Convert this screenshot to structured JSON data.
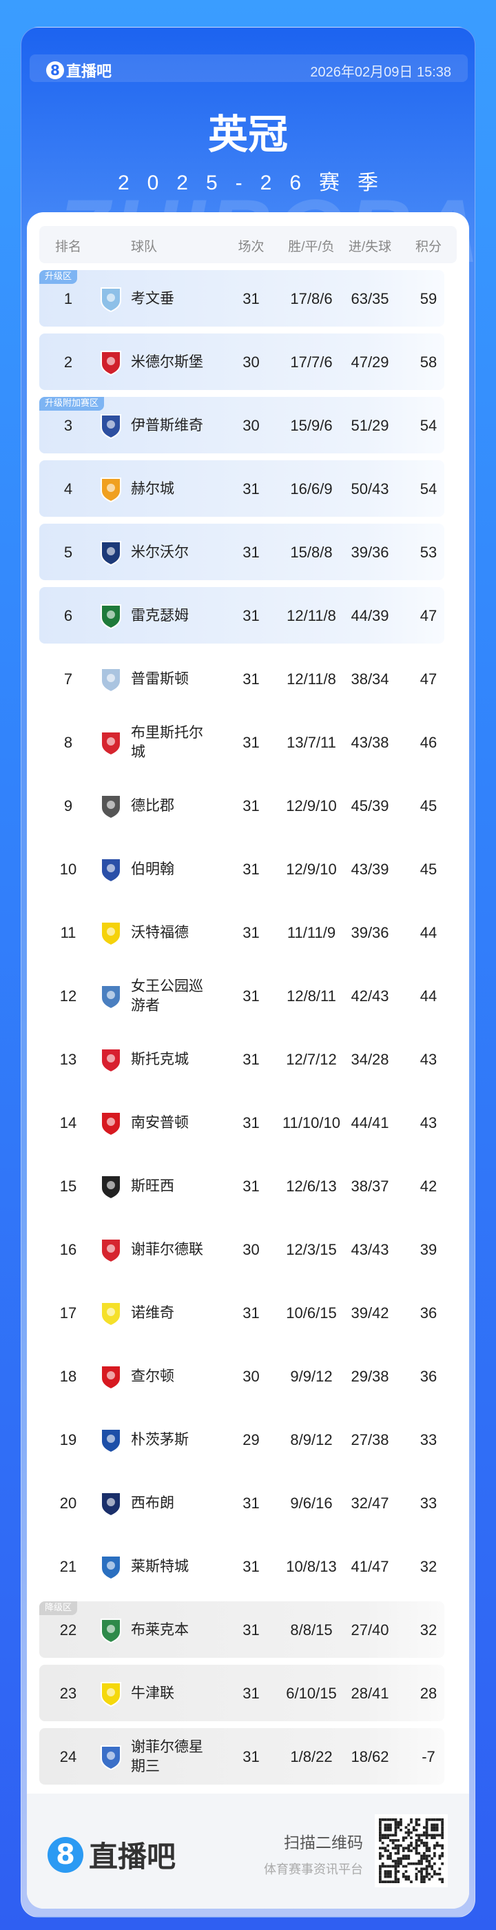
{
  "header": {
    "brand": "直播吧",
    "datetime": "2026年02月09日 15:38"
  },
  "title": "英冠",
  "season": "2025-26赛季",
  "watermark": "ZHIBOBA",
  "table": {
    "columns": [
      "排名",
      "球队",
      "场次",
      "胜/平/负",
      "进/失球",
      "积分"
    ],
    "zones": {
      "promo": "升级区",
      "playoff": "升级附加赛区",
      "releg": "降级区"
    },
    "rows": [
      {
        "rank": "1",
        "team": "考文垂",
        "played": "31",
        "wdl": "17/8/6",
        "goals": "63/35",
        "points": "59",
        "zone": "promo",
        "crest": "#8dc0e8"
      },
      {
        "rank": "2",
        "team": "米德尔斯堡",
        "played": "30",
        "wdl": "17/7/6",
        "goals": "47/29",
        "points": "58",
        "zone": "promo",
        "crest": "#d0202b"
      },
      {
        "rank": "3",
        "team": "伊普斯维奇",
        "played": "30",
        "wdl": "15/9/6",
        "goals": "51/29",
        "points": "54",
        "zone": "playoff",
        "crest": "#2d4fa0"
      },
      {
        "rank": "4",
        "team": "赫尔城",
        "played": "31",
        "wdl": "16/6/9",
        "goals": "50/43",
        "points": "54",
        "zone": "playoff",
        "crest": "#f0a020"
      },
      {
        "rank": "5",
        "team": "米尔沃尔",
        "played": "31",
        "wdl": "15/8/8",
        "goals": "39/36",
        "points": "53",
        "zone": "playoff",
        "crest": "#1d3a78"
      },
      {
        "rank": "6",
        "team": "雷克瑟姆",
        "played": "31",
        "wdl": "12/11/8",
        "goals": "44/39",
        "points": "47",
        "zone": "playoff",
        "crest": "#1e7a3a"
      },
      {
        "rank": "7",
        "team": "普雷斯顿",
        "played": "31",
        "wdl": "12/11/8",
        "goals": "38/34",
        "points": "47",
        "zone": "",
        "crest": "#aac4e0"
      },
      {
        "rank": "8",
        "team": "布里斯托尔城",
        "played": "31",
        "wdl": "13/7/11",
        "goals": "43/38",
        "points": "46",
        "zone": "",
        "crest": "#d6252f"
      },
      {
        "rank": "9",
        "team": "德比郡",
        "played": "31",
        "wdl": "12/9/10",
        "goals": "45/39",
        "points": "45",
        "zone": "",
        "crest": "#555555"
      },
      {
        "rank": "10",
        "team": "伯明翰",
        "played": "31",
        "wdl": "12/9/10",
        "goals": "43/39",
        "points": "45",
        "zone": "",
        "crest": "#2a4fa8"
      },
      {
        "rank": "11",
        "team": "沃特福德",
        "played": "31",
        "wdl": "11/11/9",
        "goals": "39/36",
        "points": "44",
        "zone": "",
        "crest": "#f5d20b"
      },
      {
        "rank": "12",
        "team": "女王公园巡游者",
        "played": "31",
        "wdl": "12/8/11",
        "goals": "42/43",
        "points": "44",
        "zone": "",
        "crest": "#4a7fc0"
      },
      {
        "rank": "13",
        "team": "斯托克城",
        "played": "31",
        "wdl": "12/7/12",
        "goals": "34/28",
        "points": "43",
        "zone": "",
        "crest": "#d8202f"
      },
      {
        "rank": "14",
        "team": "南安普顿",
        "played": "31",
        "wdl": "11/10/10",
        "goals": "44/41",
        "points": "43",
        "zone": "",
        "crest": "#d71920"
      },
      {
        "rank": "15",
        "team": "斯旺西",
        "played": "31",
        "wdl": "12/6/13",
        "goals": "38/37",
        "points": "42",
        "zone": "",
        "crest": "#222222"
      },
      {
        "rank": "16",
        "team": "谢菲尔德联",
        "played": "30",
        "wdl": "12/3/15",
        "goals": "43/43",
        "points": "39",
        "zone": "",
        "crest": "#d6252f"
      },
      {
        "rank": "17",
        "team": "诺维奇",
        "played": "31",
        "wdl": "10/6/15",
        "goals": "39/42",
        "points": "36",
        "zone": "",
        "crest": "#f5e02a"
      },
      {
        "rank": "18",
        "team": "查尔顿",
        "played": "30",
        "wdl": "9/9/12",
        "goals": "29/38",
        "points": "36",
        "zone": "",
        "crest": "#d71920"
      },
      {
        "rank": "19",
        "team": "朴茨茅斯",
        "played": "29",
        "wdl": "8/9/12",
        "goals": "27/38",
        "points": "33",
        "zone": "",
        "crest": "#1d4fa8"
      },
      {
        "rank": "20",
        "team": "西布朗",
        "played": "31",
        "wdl": "9/6/16",
        "goals": "32/47",
        "points": "33",
        "zone": "",
        "crest": "#1a2f6a"
      },
      {
        "rank": "21",
        "team": "莱斯特城",
        "played": "31",
        "wdl": "10/8/13",
        "goals": "41/47",
        "points": "32",
        "zone": "",
        "crest": "#2a6fc0"
      },
      {
        "rank": "22",
        "team": "布莱克本",
        "played": "31",
        "wdl": "8/8/15",
        "goals": "27/40",
        "points": "32",
        "zone": "releg",
        "crest": "#2e8a4a"
      },
      {
        "rank": "23",
        "team": "牛津联",
        "played": "31",
        "wdl": "6/10/15",
        "goals": "28/41",
        "points": "28",
        "zone": "releg",
        "crest": "#f5d80b"
      },
      {
        "rank": "24",
        "team": "谢菲尔德星期三",
        "played": "31",
        "wdl": "1/8/22",
        "goals": "18/62",
        "points": "-7",
        "zone": "releg",
        "crest": "#3a6fc8"
      }
    ]
  },
  "footer": {
    "brand": "直播吧",
    "scan": "扫描二维码",
    "slogan": "体育赛事资讯平台"
  }
}
